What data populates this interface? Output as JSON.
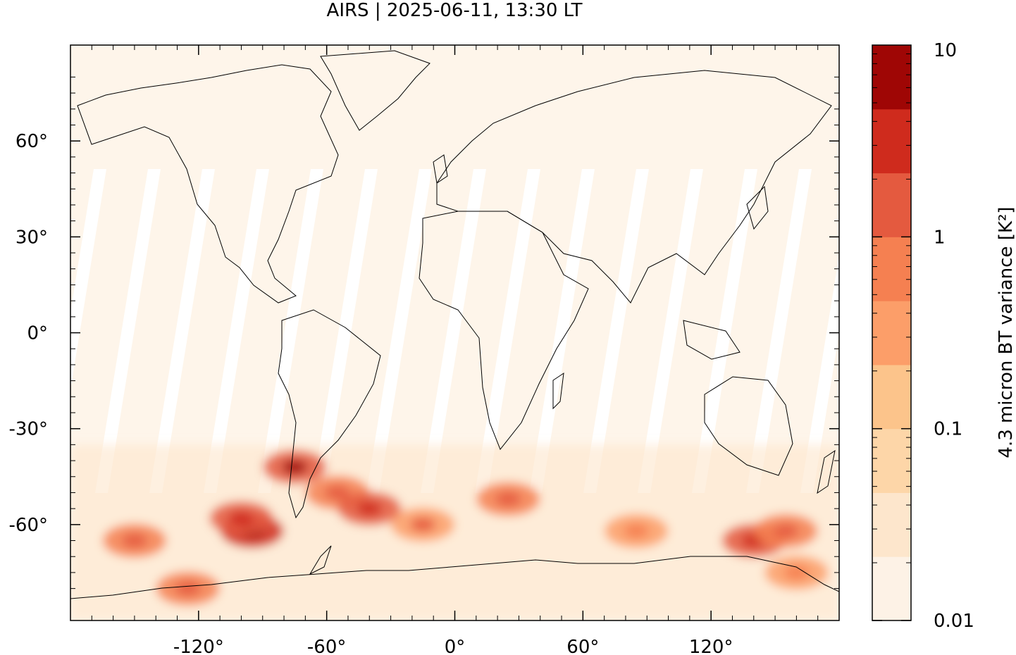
{
  "title": "AIRS | 2025-06-11, 13:30 LT",
  "map": {
    "projection": "equirectangular",
    "lon_range": [
      -180,
      180
    ],
    "lat_range": [
      -90,
      90
    ],
    "x_ticks": [
      {
        "value": -120,
        "label": "-120°"
      },
      {
        "value": -60,
        "label": "-60°"
      },
      {
        "value": 0,
        "label": "0°"
      },
      {
        "value": 60,
        "label": "60°"
      },
      {
        "value": 120,
        "label": "120°"
      }
    ],
    "y_ticks": [
      {
        "value": 60,
        "label": "60°"
      },
      {
        "value": 30,
        "label": "30°"
      },
      {
        "value": 0,
        "label": "0°"
      },
      {
        "value": -30,
        "label": "-30°"
      },
      {
        "value": -60,
        "label": "-60°"
      }
    ],
    "background_color": "#fef5ea",
    "swath_gap_color": "#ffffff",
    "coastline_color": "#000000",
    "hotspots": [
      {
        "lon": -95,
        "lat": -62,
        "level": 0.9
      },
      {
        "lon": -100,
        "lat": -58,
        "level": 0.75
      },
      {
        "lon": -75,
        "lat": -42,
        "level": 0.8
      },
      {
        "lon": -55,
        "lat": -50,
        "level": 0.6
      },
      {
        "lon": -40,
        "lat": -55,
        "level": 0.75
      },
      {
        "lon": -150,
        "lat": -65,
        "level": 0.6
      },
      {
        "lon": -125,
        "lat": -80,
        "level": 0.6
      },
      {
        "lon": -15,
        "lat": -60,
        "level": 0.55
      },
      {
        "lon": 25,
        "lat": -52,
        "level": 0.65
      },
      {
        "lon": 85,
        "lat": -62,
        "level": 0.5
      },
      {
        "lon": 140,
        "lat": -65,
        "level": 0.7
      },
      {
        "lon": 155,
        "lat": -62,
        "level": 0.6
      },
      {
        "lon": 160,
        "lat": -75,
        "level": 0.5
      }
    ]
  },
  "colorbar": {
    "label": "4.3 micron BT variance [K²]",
    "scale": "log",
    "range": [
      0.01,
      10
    ],
    "ticks": [
      {
        "value": 0.01,
        "label": "0.01"
      },
      {
        "value": 0.1,
        "label": "0.1"
      },
      {
        "value": 1,
        "label": "1"
      },
      {
        "value": 10,
        "label": "10"
      }
    ],
    "colors": [
      "#fdf2e6",
      "#fde6cc",
      "#fdd6a8",
      "#fcc48b",
      "#fc9e69",
      "#f58051",
      "#e45a3f",
      "#cf2b1d",
      "#9f0605"
    ]
  }
}
